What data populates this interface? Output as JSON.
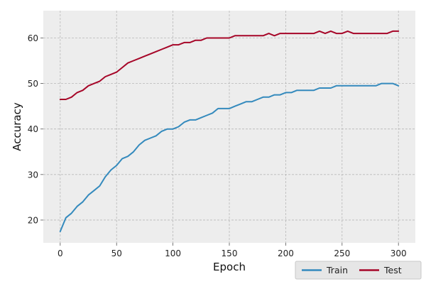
{
  "chart_data": {
    "type": "line",
    "xlabel": "Epoch",
    "ylabel": "Accuracy",
    "xlim": [
      -15,
      315
    ],
    "ylim": [
      15,
      66
    ],
    "xticks": [
      0,
      50,
      100,
      150,
      200,
      250,
      300
    ],
    "yticks": [
      20,
      30,
      40,
      50,
      60
    ],
    "grid": true,
    "legend_position": "bottom-right",
    "background_color": "#ededed",
    "series": [
      {
        "name": "Train",
        "color": "#348abd",
        "x": [
          0,
          5,
          10,
          15,
          20,
          25,
          30,
          35,
          40,
          45,
          50,
          55,
          60,
          65,
          70,
          75,
          80,
          85,
          90,
          95,
          100,
          105,
          110,
          115,
          120,
          125,
          130,
          135,
          140,
          145,
          150,
          155,
          160,
          165,
          170,
          175,
          180,
          185,
          190,
          195,
          200,
          205,
          210,
          215,
          220,
          225,
          230,
          235,
          240,
          245,
          250,
          255,
          260,
          265,
          270,
          275,
          280,
          285,
          290,
          295,
          300
        ],
        "values": [
          17.5,
          20.5,
          21.5,
          23.0,
          24.0,
          25.5,
          26.5,
          27.5,
          29.5,
          31.0,
          32.0,
          33.5,
          34.0,
          35.0,
          36.5,
          37.5,
          38.0,
          38.5,
          39.5,
          40.0,
          40.0,
          40.5,
          41.5,
          42.0,
          42.0,
          42.5,
          43.0,
          43.5,
          44.5,
          44.5,
          44.5,
          45.0,
          45.5,
          46.0,
          46.0,
          46.5,
          47.0,
          47.0,
          47.5,
          47.5,
          48.0,
          48.0,
          48.5,
          48.5,
          48.5,
          48.5,
          49.0,
          49.0,
          49.0,
          49.5,
          49.5,
          49.5,
          49.5,
          49.5,
          49.5,
          49.5,
          49.5,
          50.0,
          50.0,
          50.0,
          49.5
        ]
      },
      {
        "name": "Test",
        "color": "#a60628",
        "x": [
          0,
          5,
          10,
          15,
          20,
          25,
          30,
          35,
          40,
          45,
          50,
          55,
          60,
          65,
          70,
          75,
          80,
          85,
          90,
          95,
          100,
          105,
          110,
          115,
          120,
          125,
          130,
          135,
          140,
          145,
          150,
          155,
          160,
          165,
          170,
          175,
          180,
          185,
          190,
          195,
          200,
          205,
          210,
          215,
          220,
          225,
          230,
          235,
          240,
          245,
          250,
          255,
          260,
          265,
          270,
          275,
          280,
          285,
          290,
          295,
          300
        ],
        "values": [
          46.5,
          46.5,
          47.0,
          48.0,
          48.5,
          49.5,
          50.0,
          50.5,
          51.5,
          52.0,
          52.5,
          53.5,
          54.5,
          55.0,
          55.5,
          56.0,
          56.5,
          57.0,
          57.5,
          58.0,
          58.5,
          58.5,
          59.0,
          59.0,
          59.5,
          59.5,
          60.0,
          60.0,
          60.0,
          60.0,
          60.0,
          60.5,
          60.5,
          60.5,
          60.5,
          60.5,
          60.5,
          61.0,
          60.5,
          61.0,
          61.0,
          61.0,
          61.0,
          61.0,
          61.0,
          61.0,
          61.5,
          61.0,
          61.5,
          61.0,
          61.0,
          61.5,
          61.0,
          61.0,
          61.0,
          61.0,
          61.0,
          61.0,
          61.0,
          61.5,
          61.5
        ]
      }
    ]
  }
}
